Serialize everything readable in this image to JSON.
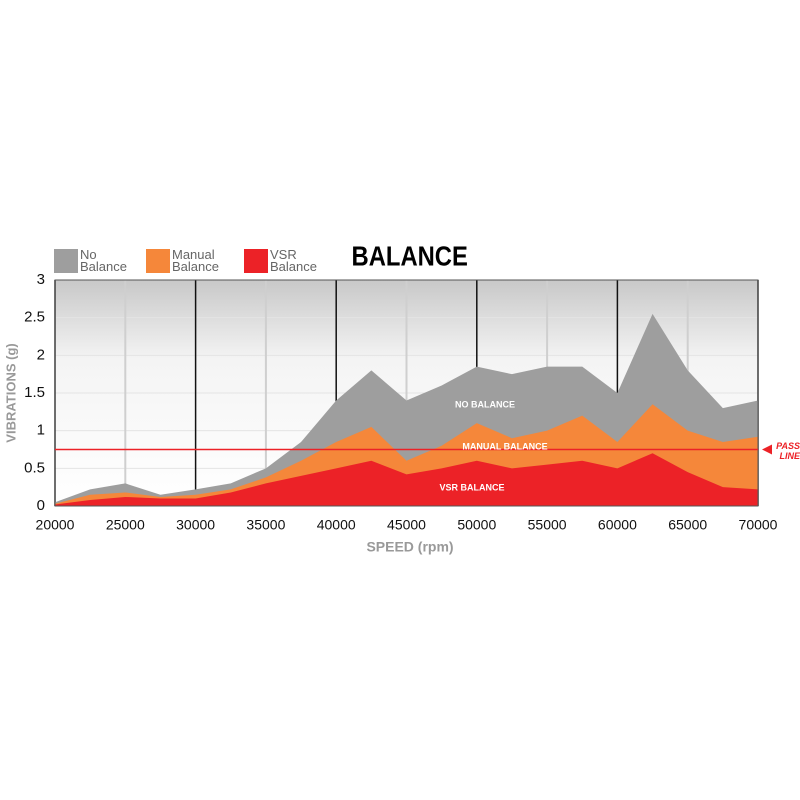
{
  "chart_data": {
    "type": "area",
    "title": "BALANCE",
    "x_label": "SPEED (rpm)",
    "y_label": "VIBRATIONS (g)",
    "x": [
      20000,
      22500,
      25000,
      27500,
      30000,
      32500,
      35000,
      37500,
      40000,
      42500,
      45000,
      47500,
      50000,
      52500,
      55000,
      57500,
      60000,
      62500,
      65000,
      67500,
      70000
    ],
    "series": [
      {
        "name": "No Balance",
        "color": "#9e9e9e",
        "values": [
          0.05,
          0.22,
          0.3,
          0.15,
          0.22,
          0.3,
          0.5,
          0.85,
          1.4,
          1.8,
          1.4,
          1.6,
          1.85,
          1.75,
          1.85,
          1.85,
          1.5,
          2.55,
          1.8,
          1.3,
          1.4
        ]
      },
      {
        "name": "Manual Balance",
        "color": "#f5873a",
        "values": [
          0.03,
          0.15,
          0.18,
          0.12,
          0.15,
          0.22,
          0.38,
          0.6,
          0.85,
          1.05,
          0.6,
          0.8,
          1.1,
          0.9,
          1.0,
          1.2,
          0.85,
          1.35,
          1.0,
          0.85,
          0.92
        ]
      },
      {
        "name": "VSR Balance",
        "color": "#ec2227",
        "values": [
          0.02,
          0.08,
          0.12,
          0.1,
          0.1,
          0.18,
          0.3,
          0.4,
          0.5,
          0.6,
          0.42,
          0.5,
          0.6,
          0.5,
          0.55,
          0.6,
          0.5,
          0.7,
          0.45,
          0.25,
          0.22
        ]
      }
    ],
    "area_labels": [
      "NO BALANCE",
      "MANUAL BALANCE",
      "VSR BALANCE"
    ],
    "pass_line": {
      "value": 0.75,
      "label": "PASS LINE",
      "color": "#ec2227"
    },
    "xlim": [
      20000,
      70000
    ],
    "xticks": [
      20000,
      25000,
      30000,
      35000,
      40000,
      45000,
      50000,
      55000,
      60000,
      65000,
      70000
    ],
    "ylim": [
      0,
      3
    ],
    "yticks": [
      0,
      0.5,
      1,
      1.5,
      2,
      2.5,
      3
    ],
    "grid": true
  }
}
